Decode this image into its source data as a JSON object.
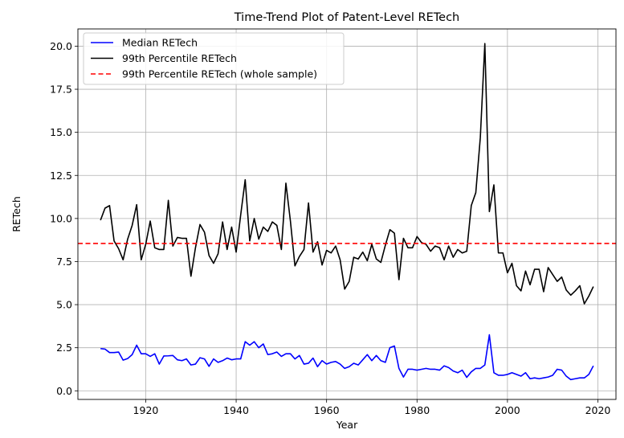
{
  "chart_data": {
    "type": "line",
    "title": "Time-Trend Plot of Patent-Level RETech",
    "xlabel": "Year",
    "ylabel": "RETech",
    "xlim": [
      1905,
      2024
    ],
    "ylim": [
      -0.5,
      21.0
    ],
    "x_ticks": [
      1920,
      1940,
      1960,
      1980,
      2000,
      2020
    ],
    "y_ticks": [
      0.0,
      2.5,
      5.0,
      7.5,
      10.0,
      12.5,
      15.0,
      17.5,
      20.0
    ],
    "x_tick_labels": [
      "1920",
      "1940",
      "1960",
      "1980",
      "2000",
      "2020"
    ],
    "y_tick_labels": [
      "0.0",
      "2.5",
      "5.0",
      "7.5",
      "10.0",
      "12.5",
      "15.0",
      "17.5",
      "20.0"
    ],
    "grid": true,
    "legend_position": "top-left",
    "x": [
      1910,
      1911,
      1912,
      1913,
      1914,
      1915,
      1916,
      1917,
      1918,
      1919,
      1920,
      1921,
      1922,
      1923,
      1924,
      1925,
      1926,
      1927,
      1928,
      1929,
      1930,
      1931,
      1932,
      1933,
      1934,
      1935,
      1936,
      1937,
      1938,
      1939,
      1940,
      1941,
      1942,
      1943,
      1944,
      1945,
      1946,
      1947,
      1948,
      1949,
      1950,
      1951,
      1952,
      1953,
      1954,
      1955,
      1956,
      1957,
      1958,
      1959,
      1960,
      1961,
      1962,
      1963,
      1964,
      1965,
      1966,
      1967,
      1968,
      1969,
      1970,
      1971,
      1972,
      1973,
      1974,
      1975,
      1976,
      1977,
      1978,
      1979,
      1980,
      1981,
      1982,
      1983,
      1984,
      1985,
      1986,
      1987,
      1988,
      1989,
      1990,
      1991,
      1992,
      1993,
      1994,
      1995,
      1996,
      1997,
      1998,
      1999,
      2000,
      2001,
      2002,
      2003,
      2004,
      2005,
      2006,
      2007,
      2008,
      2009,
      2010,
      2011,
      2012,
      2013,
      2014,
      2015,
      2016,
      2017,
      2018,
      2019
    ],
    "series": [
      {
        "name": "Median RETech",
        "color": "#0000ff",
        "style": "solid",
        "values": [
          2.45,
          2.42,
          2.22,
          2.22,
          2.25,
          1.78,
          1.87,
          2.1,
          2.65,
          2.15,
          2.15,
          2.0,
          2.15,
          1.55,
          2.02,
          2.03,
          2.05,
          1.8,
          1.75,
          1.85,
          1.5,
          1.55,
          1.92,
          1.85,
          1.42,
          1.85,
          1.65,
          1.75,
          1.9,
          1.8,
          1.85,
          1.85,
          2.85,
          2.65,
          2.85,
          2.5,
          2.72,
          2.1,
          2.15,
          2.25,
          2.0,
          2.15,
          2.15,
          1.85,
          2.05,
          1.55,
          1.6,
          1.9,
          1.4,
          1.75,
          1.55,
          1.65,
          1.7,
          1.55,
          1.3,
          1.4,
          1.6,
          1.5,
          1.8,
          2.1,
          1.75,
          2.05,
          1.75,
          1.65,
          2.5,
          2.6,
          1.3,
          0.8,
          1.25,
          1.25,
          1.2,
          1.25,
          1.3,
          1.25,
          1.25,
          1.2,
          1.45,
          1.35,
          1.15,
          1.05,
          1.2,
          0.78,
          1.1,
          1.3,
          1.3,
          1.5,
          3.25,
          1.05,
          0.9,
          0.9,
          0.95,
          1.05,
          0.95,
          0.85,
          1.05,
          0.7,
          0.75,
          0.7,
          0.75,
          0.8,
          0.9,
          1.25,
          1.2,
          0.85,
          0.65,
          0.7,
          0.75,
          0.75,
          0.95,
          1.45
        ]
      },
      {
        "name": "99th Percentile RETech",
        "color": "#000000",
        "style": "solid",
        "values": [
          9.9,
          10.6,
          10.75,
          8.7,
          8.25,
          7.6,
          8.8,
          9.6,
          10.8,
          7.6,
          8.5,
          9.85,
          8.3,
          8.2,
          8.2,
          11.05,
          8.4,
          8.9,
          8.85,
          8.85,
          6.65,
          8.3,
          9.65,
          9.2,
          7.85,
          7.4,
          7.95,
          9.8,
          8.2,
          9.5,
          8.05,
          10.2,
          12.25,
          8.7,
          10.0,
          8.8,
          9.5,
          9.25,
          9.8,
          9.6,
          8.2,
          12.05,
          9.85,
          7.25,
          7.8,
          8.2,
          10.9,
          8.05,
          8.65,
          7.3,
          8.15,
          8.0,
          8.4,
          7.6,
          5.9,
          6.35,
          7.75,
          7.65,
          8.05,
          7.55,
          8.5,
          7.65,
          7.45,
          8.45,
          9.35,
          9.15,
          6.45,
          8.85,
          8.3,
          8.3,
          8.95,
          8.6,
          8.5,
          8.1,
          8.4,
          8.3,
          7.6,
          8.4,
          7.75,
          8.2,
          8.0,
          8.1,
          10.75,
          11.5,
          14.7,
          20.15,
          10.4,
          11.95,
          8.0,
          8.0,
          6.85,
          7.4,
          6.1,
          5.8,
          6.95,
          6.15,
          7.05,
          7.05,
          5.75,
          7.15,
          6.75,
          6.35,
          6.6,
          5.85,
          5.55,
          5.8,
          6.1,
          5.05,
          5.5,
          6.05
        ]
      },
      {
        "name": "99th Percentile RETech (whole sample)",
        "color": "#ff0000",
        "style": "dashed",
        "constant": 8.55
      }
    ]
  }
}
